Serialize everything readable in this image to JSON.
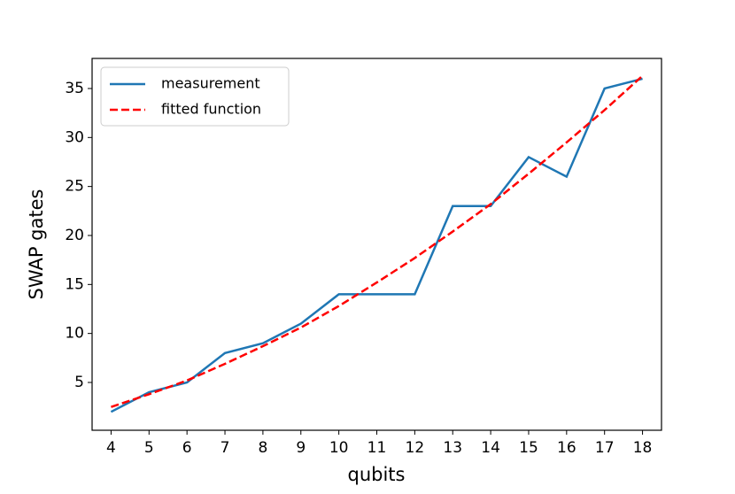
{
  "chart_data": {
    "type": "line",
    "x": [
      4,
      5,
      6,
      7,
      8,
      9,
      10,
      11,
      12,
      13,
      14,
      15,
      16,
      17,
      18
    ],
    "x_label": "qubits",
    "y_label": "SWAP gates",
    "series": [
      {
        "name": "measurement",
        "color": "#1f77b4",
        "style": "solid",
        "values": [
          2,
          4,
          5,
          8,
          9,
          11,
          14,
          14,
          14,
          23,
          23,
          28,
          26,
          35,
          36
        ]
      },
      {
        "name": "fitted function",
        "color": "#ff0000",
        "style": "dashed",
        "values": [
          2.5,
          3.8,
          5.2,
          6.9,
          8.7,
          10.6,
          12.8,
          15.2,
          17.7,
          20.4,
          23.2,
          26.3,
          29.5,
          32.8,
          36.3
        ]
      }
    ],
    "xlim": [
      3.5,
      18.5
    ],
    "xticks": [
      4,
      5,
      6,
      7,
      8,
      9,
      10,
      11,
      12,
      13,
      14,
      15,
      16,
      17,
      18
    ],
    "ylim": [
      0.12,
      38.07
    ],
    "yticks": [
      5,
      10,
      15,
      20,
      25,
      30,
      35
    ],
    "legend": "upper-left"
  }
}
